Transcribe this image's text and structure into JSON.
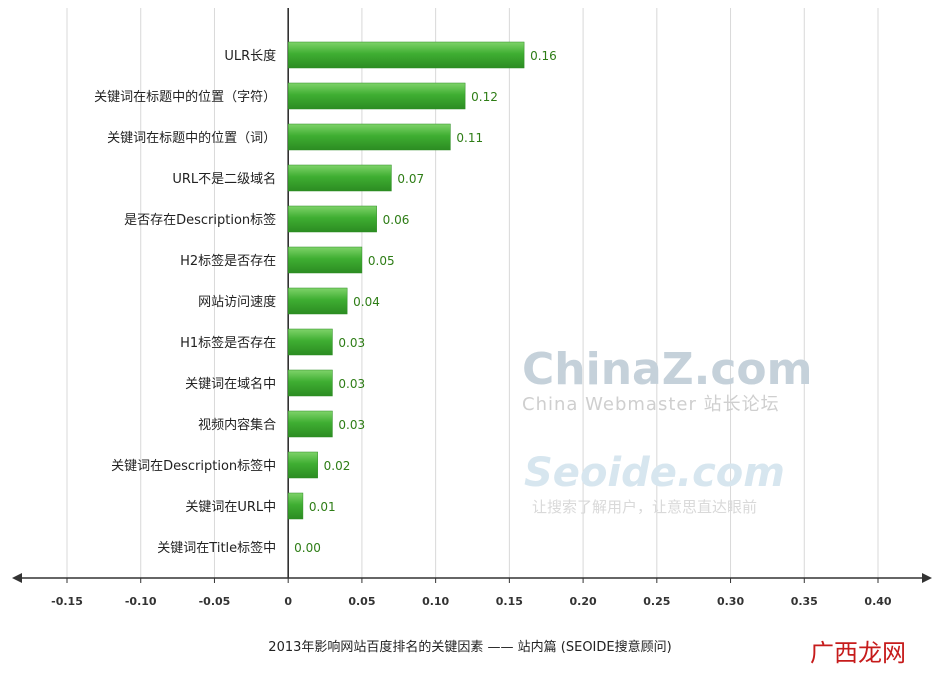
{
  "chart_data": {
    "type": "bar",
    "orientation": "horizontal",
    "categories": [
      "ULR长度",
      "关键词在标题中的位置（字符）",
      "关键词在标题中的位置（词）",
      "URL不是二级域名",
      "是否存在Description标签",
      "H2标签是否存在",
      "网站访问速度",
      "H1标签是否存在",
      "关键词在域名中",
      "视频内容集合",
      "关键词在Description标签中",
      "关键词在URL中",
      "关键词在Title标签中"
    ],
    "values": [
      0.16,
      0.12,
      0.11,
      0.07,
      0.06,
      0.05,
      0.04,
      0.03,
      0.03,
      0.03,
      0.02,
      0.01,
      0.0
    ],
    "value_labels": [
      "0.16",
      "0.12",
      "0.11",
      "0.07",
      "0.06",
      "0.05",
      "0.04",
      "0.03",
      "0.03",
      "0.03",
      "0.02",
      "0.01",
      "0.00"
    ],
    "xlim": [
      -0.15,
      0.4
    ],
    "x_ticks": [
      "-0.15",
      "-0.10",
      "-0.05",
      "0",
      "0.05",
      "0.10",
      "0.15",
      "0.20",
      "0.25",
      "0.30",
      "0.35",
      "0.40"
    ],
    "x_tick_values": [
      -0.15,
      -0.1,
      -0.05,
      0,
      0.05,
      0.1,
      0.15,
      0.2,
      0.25,
      0.3,
      0.35,
      0.4
    ],
    "grid": "vertical",
    "bar_color": "#3fae32",
    "caption": "2013年影响网站百度排名的关键因素 —— 站内篇 (SEOIDE搜意顾问)"
  },
  "watermarks": {
    "chinaz_logo": "ChinaZ.com",
    "chinaz_sub": "China Webmaster 站长论坛",
    "seoide_logo": "Seoide.com",
    "seoide_sub": "让搜索了解用户，让意思直达眼前",
    "site_logo": "广西龙网"
  }
}
